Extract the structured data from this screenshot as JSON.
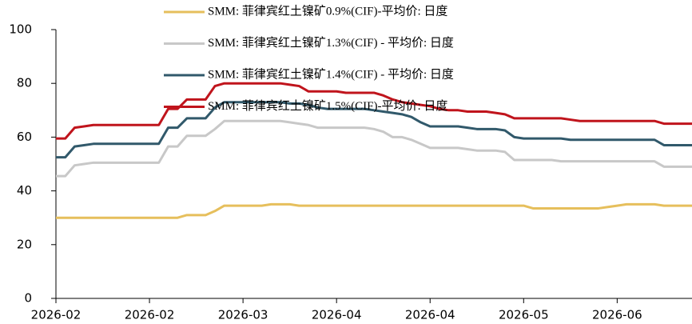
{
  "chart_data": {
    "type": "line",
    "categories": [
      "2026-02",
      null,
      null,
      null,
      null,
      null,
      null,
      null,
      null,
      null,
      "2026-02",
      null,
      null,
      null,
      null,
      null,
      null,
      null,
      null,
      null,
      "2026-03",
      null,
      null,
      null,
      null,
      null,
      null,
      null,
      null,
      null,
      "2026-04",
      null,
      null,
      null,
      null,
      null,
      null,
      null,
      null,
      null,
      "2026-04",
      null,
      null,
      null,
      null,
      null,
      null,
      null,
      null,
      null,
      "2026-05",
      null,
      null,
      null,
      null,
      null,
      null,
      null,
      null,
      null,
      "2026-06",
      null,
      null,
      null,
      null,
      null,
      null,
      null,
      null
    ],
    "series": [
      {
        "name": "SMM: 菲律宾红土镍矿0.9%(CIF)-平均价: 日度",
        "color": "#e6bf5c",
        "values": [
          30,
          30,
          30,
          30,
          30,
          30,
          30,
          30,
          30,
          30,
          30,
          30,
          30,
          30,
          31,
          31,
          31,
          32.5,
          34.5,
          34.5,
          34.5,
          34.5,
          34.5,
          35,
          35,
          35,
          34.5,
          34.5,
          34.5,
          34.5,
          34.5,
          34.5,
          34.5,
          34.5,
          34.5,
          34.5,
          34.5,
          34.5,
          34.5,
          34.5,
          34.5,
          34.5,
          34.5,
          34.5,
          34.5,
          34.5,
          34.5,
          34.5,
          34.5,
          34.5,
          34.5,
          33.5,
          33.5,
          33.5,
          33.5,
          33.5,
          33.5,
          33.5,
          33.5,
          34,
          34.5,
          35,
          35,
          35,
          35,
          34.5,
          34.5,
          34.5,
          34.5
        ]
      },
      {
        "name": "SMM: 菲律宾红土镍矿1.3%(CIF) - 平均价: 日度",
        "color": "#c8c8c8",
        "values": [
          45.5,
          45.5,
          49.5,
          50,
          50.5,
          50.5,
          50.5,
          50.5,
          50.5,
          50.5,
          50.5,
          50.5,
          56.5,
          56.5,
          60.5,
          60.5,
          60.5,
          63,
          66,
          66,
          66,
          66,
          66,
          66,
          66,
          65.5,
          65,
          64.5,
          63.5,
          63.5,
          63.5,
          63.5,
          63.5,
          63.5,
          63,
          62,
          60,
          60,
          59,
          57.5,
          56,
          56,
          56,
          56,
          55.5,
          55,
          55,
          55,
          54.5,
          51.5,
          51.5,
          51.5,
          51.5,
          51.5,
          51,
          51,
          51,
          51,
          51,
          51,
          51,
          51,
          51,
          51,
          51,
          49,
          49,
          49,
          49
        ]
      },
      {
        "name": "SMM: 菲律宾红土镍矿1.4%(CIF) - 平均价: 日度",
        "color": "#31596b",
        "values": [
          52.5,
          52.5,
          56.5,
          57,
          57.5,
          57.5,
          57.5,
          57.5,
          57.5,
          57.5,
          57.5,
          57.5,
          63.5,
          63.5,
          67,
          67,
          67,
          71,
          73,
          73,
          73,
          73,
          73,
          73,
          73,
          72.5,
          72.5,
          72,
          71,
          70.5,
          70.5,
          70.5,
          70.5,
          70.5,
          70,
          69.5,
          69,
          68.5,
          67.5,
          65.5,
          64,
          64,
          64,
          64,
          63.5,
          63,
          63,
          63,
          62.5,
          60,
          59.5,
          59.5,
          59.5,
          59.5,
          59.5,
          59,
          59,
          59,
          59,
          59,
          59,
          59,
          59,
          59,
          59,
          57,
          57,
          57,
          57
        ]
      },
      {
        "name": "SMM: 菲律宾红土镍矿1.5%(CIF)-平均价: 日度",
        "color": "#c0141c",
        "values": [
          59.5,
          59.5,
          63.5,
          64,
          64.5,
          64.5,
          64.5,
          64.5,
          64.5,
          64.5,
          64.5,
          64.5,
          70.5,
          70.5,
          74,
          74,
          74,
          79,
          80,
          80,
          80,
          80,
          80,
          80,
          80,
          79.5,
          79,
          77,
          77,
          77,
          77,
          76.5,
          76.5,
          76.5,
          76.5,
          75.5,
          74,
          73,
          72.5,
          72,
          71.5,
          70.5,
          70,
          70,
          69.5,
          69.5,
          69.5,
          69,
          68.5,
          67,
          67,
          67,
          67,
          67,
          67,
          66.5,
          66,
          66,
          66,
          66,
          66,
          66,
          66,
          66,
          66,
          65,
          65,
          65,
          65
        ]
      }
    ],
    "ylim": [
      0,
      100
    ],
    "yticks": [
      0,
      20,
      40,
      60,
      80,
      100
    ],
    "grid": false,
    "legend": "top"
  }
}
